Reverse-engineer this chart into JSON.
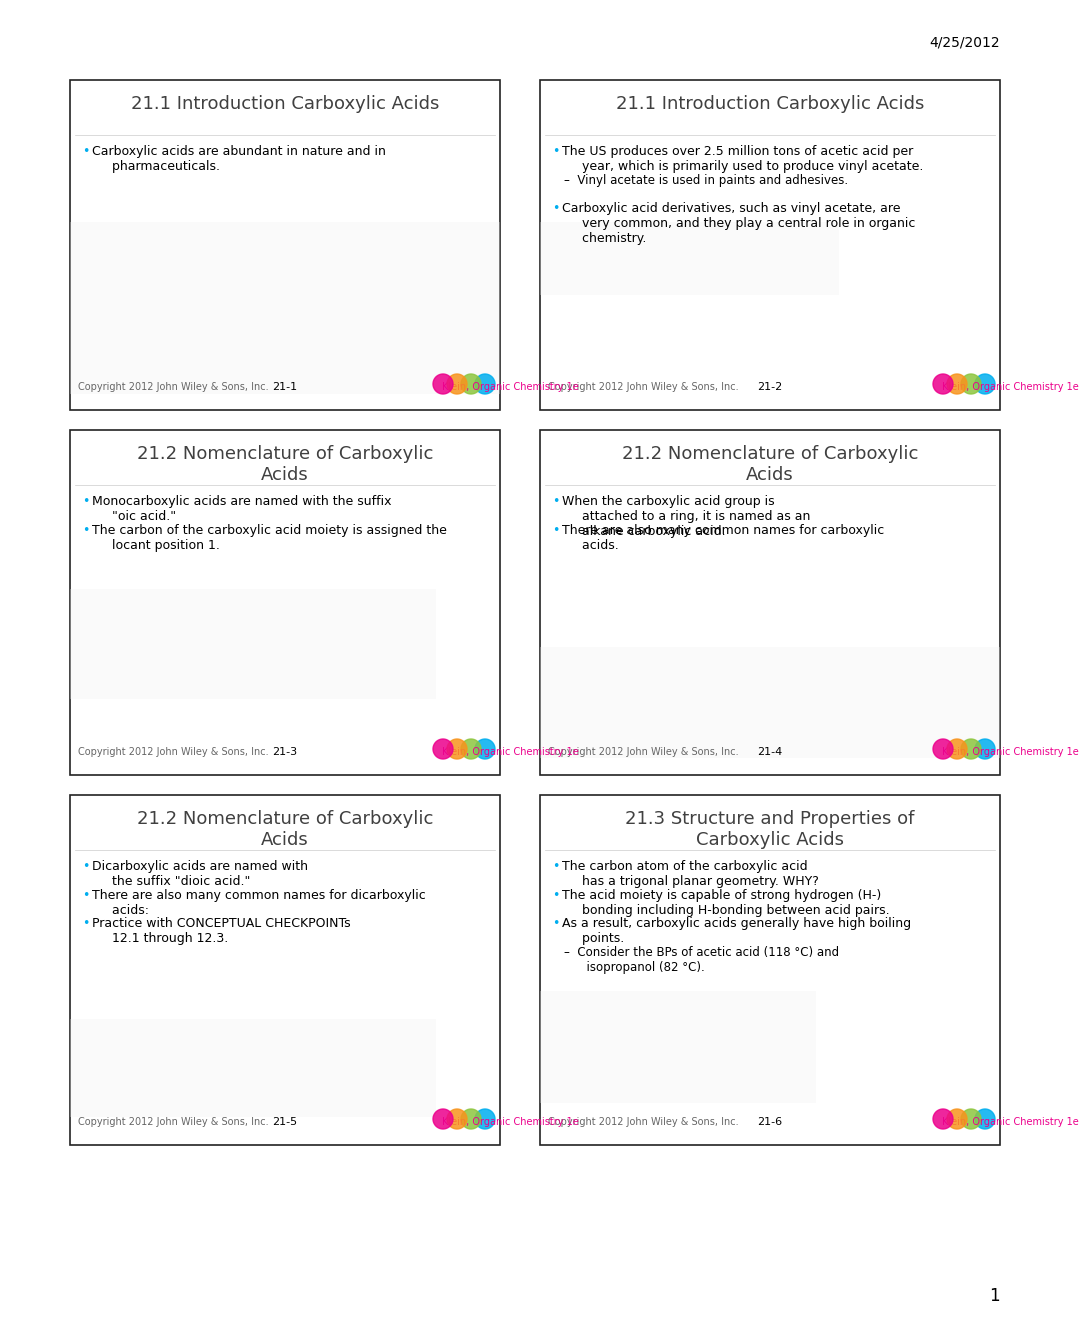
{
  "date_text": "4/25/2012",
  "page_number": "1",
  "background_color": "#ffffff",
  "slide_border_color": "#000000",
  "slide_bg": "#ffffff",
  "slides": [
    {
      "id": "21-1",
      "title": "21.1 Introduction Carboxylic Acids",
      "number": "21-1",
      "content_lines": [
        "•  Carboxylic acids are abundant in nature and in\n     pharmaceuticals."
      ],
      "footer_left": "Copyright 2012 John Wiley & Sons, Inc.",
      "footer_center": "21-1",
      "footer_right": "Klein, Organic Chemistry 1e",
      "has_circles": true
    },
    {
      "id": "21-2",
      "title": "21.1 Introduction Carboxylic Acids",
      "number": "21-2",
      "content_lines": [
        "•  The US produces over 2.5 million tons of acetic acid per\n     year, which is primarily used to produce vinyl acetate.",
        "–   Vinyl acetate is used in paints and adhesives.",
        "•  Carboxylic acid derivatives, such as vinyl acetate, are\n     very common, and they play a central role in organic\n     chemistry."
      ],
      "footer_left": "Copyright 2012 John Wiley & Sons, Inc.",
      "footer_center": "21-2",
      "footer_right": "Klein, Organic Chemistry 1e",
      "has_circles": true
    },
    {
      "id": "21-3",
      "title": "21.2 Nomenclature of Carboxylic\nAcids",
      "number": "21-3",
      "content_lines": [
        "•  Monocarboxylic acids are named with the suffix\n     \"oic acid.\"",
        "•  The carbon of the carboxylic acid moiety is assigned the\n     locant position 1."
      ],
      "footer_left": "Copyright 2012 John Wiley & Sons, Inc.",
      "footer_center": "21-3",
      "footer_right": "Klein, Organic Chemistry 1e",
      "has_circles": true
    },
    {
      "id": "21-4",
      "title": "21.2 Nomenclature of Carboxylic\nAcids",
      "number": "21-4",
      "content_lines": [
        "•  When the carboxylic acid group is\n     attached to a ring, it is named as an\n     alkane carboxylic acid.",
        "•  There are also many common names for carboxylic\n     acids."
      ],
      "footer_left": "Copyright 2012 John Wiley & Sons, Inc.",
      "footer_center": "21-4",
      "footer_right": "Klein, Organic Chemistry 1e",
      "has_circles": true
    },
    {
      "id": "21-5",
      "title": "21.2 Nomenclature of Carboxylic\nAcids",
      "number": "21-5",
      "content_lines": [
        "•  ​Dicarboxylic acids are named with\n     the suffix \"​dioic acid.\"",
        "•  There are also many common names for dicarboxylic\n     acids:",
        "•  Practice with CONCEPTUAL CHECKPOINTs\n     12.1 through 12.3."
      ],
      "footer_left": "Copyright 2012 John Wiley & Sons, Inc.",
      "footer_center": "21-5",
      "footer_right": "Klein, Organic Chemistry 1e",
      "has_circles": true
    },
    {
      "id": "21-6",
      "title": "21.3 Structure and Properties of\nCarboxylic Acids",
      "number": "21-6",
      "content_lines": [
        "•  The carbon atom of the carboxylic acid\n     has a trigonal planar geometry. WHY?",
        "•  The acid moiety is capable of strong hydrogen (H-)\n     bonding including H-bonding between acid pairs.",
        "•  As a result, carboxylic acids generally have high boiling\n     points.",
        "–   Consider the BPs of acetic acid (118 °C) and\n      isopropanol (82 °C)."
      ],
      "footer_left": "Copyright 2012 John Wiley & Sons, Inc.",
      "footer_center": "21-6",
      "footer_right": "Klein, Organic Chemistry 1e",
      "has_circles": true
    }
  ],
  "circle_colors": [
    "#00aeef",
    "#8dc63f",
    "#f7941d",
    "#ec008c"
  ],
  "title_fontsize": 13,
  "content_fontsize": 9,
  "footer_fontsize": 7,
  "footer_right_color": "#ec008c",
  "title_color": "#404040",
  "content_color": "#000000",
  "bullet_color": "#00aeef",
  "grid_rows": 3,
  "grid_cols": 2
}
